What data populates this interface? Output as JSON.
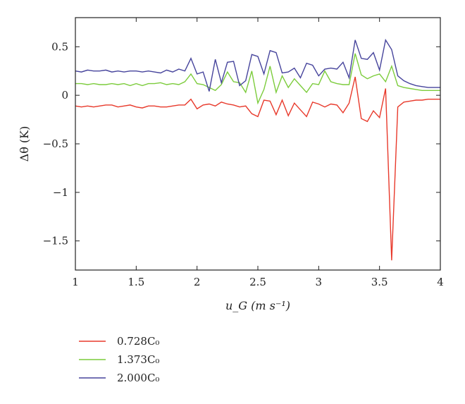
{
  "chart_data": {
    "type": "line",
    "title": "",
    "xlabel": "u_G (m s⁻¹)",
    "ylabel": "Δθ (K)",
    "xlim": [
      1,
      4
    ],
    "ylim": [
      -1.8,
      0.8
    ],
    "xticks": [
      1,
      1.5,
      2,
      2.5,
      3,
      3.5,
      4
    ],
    "xtick_labels": [
      "1",
      "1.5",
      "2",
      "2.5",
      "3",
      "3.5",
      "4"
    ],
    "yticks": [
      0.5,
      0,
      -0.5,
      -1,
      -1.5
    ],
    "ytick_labels": [
      "0.5",
      "0",
      "−0.5",
      "−1",
      "−1.5"
    ],
    "grid": false,
    "legend_position": "below",
    "series": [
      {
        "name": "0.728C₀",
        "color": "#e8392b",
        "x": [
          1.0,
          1.05,
          1.1,
          1.15,
          1.2,
          1.25,
          1.3,
          1.35,
          1.4,
          1.45,
          1.5,
          1.55,
          1.6,
          1.65,
          1.7,
          1.75,
          1.8,
          1.85,
          1.9,
          1.95,
          2.0,
          2.05,
          2.1,
          2.15,
          2.2,
          2.25,
          2.3,
          2.35,
          2.4,
          2.45,
          2.5,
          2.55,
          2.6,
          2.65,
          2.7,
          2.75,
          2.8,
          2.85,
          2.9,
          2.95,
          3.0,
          3.05,
          3.1,
          3.15,
          3.2,
          3.25,
          3.3,
          3.35,
          3.4,
          3.45,
          3.5,
          3.55,
          3.6,
          3.65,
          3.7,
          3.75,
          3.8,
          3.85,
          3.9,
          3.95,
          4.0
        ],
        "values": [
          -0.11,
          -0.12,
          -0.11,
          -0.12,
          -0.11,
          -0.1,
          -0.1,
          -0.12,
          -0.11,
          -0.1,
          -0.12,
          -0.13,
          -0.11,
          -0.11,
          -0.12,
          -0.12,
          -0.11,
          -0.1,
          -0.1,
          -0.04,
          -0.14,
          -0.1,
          -0.09,
          -0.11,
          -0.07,
          -0.09,
          -0.1,
          -0.12,
          -0.11,
          -0.19,
          -0.22,
          -0.05,
          -0.06,
          -0.2,
          -0.05,
          -0.21,
          -0.08,
          -0.15,
          -0.22,
          -0.07,
          -0.09,
          -0.12,
          -0.09,
          -0.1,
          -0.18,
          -0.08,
          0.19,
          -0.24,
          -0.27,
          -0.16,
          -0.23,
          0.07,
          -1.7,
          -0.12,
          -0.07,
          -0.06,
          -0.05,
          -0.05,
          -0.04,
          -0.04,
          -0.04
        ]
      },
      {
        "name": "1.373C₀",
        "color": "#7ccc3c",
        "x": [
          1.0,
          1.05,
          1.1,
          1.15,
          1.2,
          1.25,
          1.3,
          1.35,
          1.4,
          1.45,
          1.5,
          1.55,
          1.6,
          1.65,
          1.7,
          1.75,
          1.8,
          1.85,
          1.9,
          1.95,
          2.0,
          2.05,
          2.1,
          2.15,
          2.2,
          2.25,
          2.3,
          2.35,
          2.4,
          2.45,
          2.5,
          2.55,
          2.6,
          2.65,
          2.7,
          2.75,
          2.8,
          2.85,
          2.9,
          2.95,
          3.0,
          3.05,
          3.1,
          3.15,
          3.2,
          3.25,
          3.3,
          3.35,
          3.4,
          3.45,
          3.5,
          3.55,
          3.6,
          3.65,
          3.7,
          3.75,
          3.8,
          3.85,
          3.9,
          3.95,
          4.0
        ],
        "values": [
          0.12,
          0.12,
          0.11,
          0.12,
          0.11,
          0.11,
          0.12,
          0.11,
          0.12,
          0.1,
          0.12,
          0.1,
          0.12,
          0.12,
          0.13,
          0.11,
          0.12,
          0.11,
          0.14,
          0.22,
          0.12,
          0.11,
          0.08,
          0.05,
          0.11,
          0.24,
          0.14,
          0.13,
          0.03,
          0.25,
          -0.08,
          0.06,
          0.3,
          0.03,
          0.2,
          0.08,
          0.17,
          0.1,
          0.03,
          0.12,
          0.11,
          0.25,
          0.14,
          0.12,
          0.11,
          0.11,
          0.43,
          0.21,
          0.17,
          0.2,
          0.22,
          0.14,
          0.3,
          0.1,
          0.08,
          0.07,
          0.06,
          0.05,
          0.05,
          0.05,
          0.05
        ]
      },
      {
        "name": "2.000C₀",
        "color": "#46449c",
        "x": [
          1.0,
          1.05,
          1.1,
          1.15,
          1.2,
          1.25,
          1.3,
          1.35,
          1.4,
          1.45,
          1.5,
          1.55,
          1.6,
          1.65,
          1.7,
          1.75,
          1.8,
          1.85,
          1.9,
          1.95,
          2.0,
          2.05,
          2.1,
          2.15,
          2.2,
          2.25,
          2.3,
          2.35,
          2.4,
          2.45,
          2.5,
          2.55,
          2.6,
          2.65,
          2.7,
          2.75,
          2.8,
          2.85,
          2.9,
          2.95,
          3.0,
          3.05,
          3.1,
          3.15,
          3.2,
          3.25,
          3.3,
          3.35,
          3.4,
          3.45,
          3.5,
          3.55,
          3.6,
          3.65,
          3.7,
          3.75,
          3.8,
          3.85,
          3.9,
          3.95,
          4.0
        ],
        "values": [
          0.25,
          0.24,
          0.26,
          0.25,
          0.25,
          0.26,
          0.24,
          0.25,
          0.24,
          0.25,
          0.25,
          0.24,
          0.25,
          0.24,
          0.23,
          0.26,
          0.24,
          0.27,
          0.25,
          0.38,
          0.22,
          0.24,
          0.04,
          0.37,
          0.13,
          0.34,
          0.35,
          0.1,
          0.15,
          0.42,
          0.4,
          0.22,
          0.46,
          0.44,
          0.23,
          0.24,
          0.28,
          0.18,
          0.33,
          0.31,
          0.2,
          0.27,
          0.28,
          0.27,
          0.34,
          0.18,
          0.57,
          0.38,
          0.37,
          0.44,
          0.26,
          0.57,
          0.47,
          0.2,
          0.15,
          0.12,
          0.1,
          0.09,
          0.08,
          0.08,
          0.08
        ]
      }
    ]
  }
}
